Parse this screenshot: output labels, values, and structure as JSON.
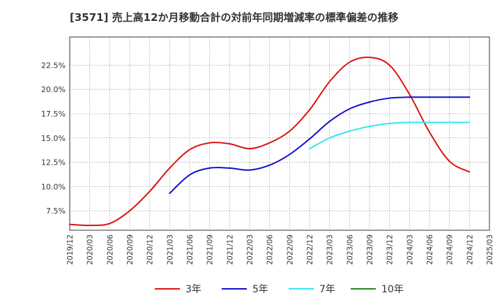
{
  "chart_data": {
    "type": "line",
    "title": "[3571]  売上高12か月移動合計の対前年同期増減率の標準偏差の推移",
    "xlabel": "",
    "ylabel": "",
    "x_ticks": [
      "2019/12",
      "2020/03",
      "2020/06",
      "2020/09",
      "2020/12",
      "2021/03",
      "2021/06",
      "2021/09",
      "2021/12",
      "2022/03",
      "2022/06",
      "2022/09",
      "2022/12",
      "2023/03",
      "2023/06",
      "2023/09",
      "2023/12",
      "2024/03",
      "2024/06",
      "2024/09",
      "2024/12",
      "2025/03"
    ],
    "y_ticks": [
      "7.5%",
      "10.0%",
      "12.5%",
      "15.0%",
      "17.5%",
      "20.0%",
      "22.5%"
    ],
    "ylim": [
      5.5,
      25.4
    ],
    "grid": true,
    "legend_position": "bottom",
    "colors": {
      "3y": "#dd1111",
      "5y": "#1111cc",
      "7y": "#33e6f0",
      "10y": "#228822"
    },
    "series": [
      {
        "name": "3年",
        "color": "#dd1111",
        "x": [
          "2019/12",
          "2020/03",
          "2020/06",
          "2020/09",
          "2020/12",
          "2021/03",
          "2021/06",
          "2021/09",
          "2021/12",
          "2022/03",
          "2022/06",
          "2022/09",
          "2022/12",
          "2023/03",
          "2023/06",
          "2023/09",
          "2023/12",
          "2024/03",
          "2024/06",
          "2024/09",
          "2024/12"
        ],
        "values": [
          6.1,
          6.0,
          6.2,
          7.5,
          9.5,
          11.9,
          13.8,
          14.5,
          14.4,
          13.9,
          14.5,
          15.7,
          17.9,
          20.8,
          22.8,
          23.3,
          22.5,
          19.5,
          15.6,
          12.6,
          11.5
        ]
      },
      {
        "name": "5年",
        "color": "#1111cc",
        "x": [
          "2021/03",
          "2021/06",
          "2021/09",
          "2021/12",
          "2022/03",
          "2022/06",
          "2022/09",
          "2022/12",
          "2023/03",
          "2023/06",
          "2023/09",
          "2023/12",
          "2024/03",
          "2024/06",
          "2024/09",
          "2024/12"
        ],
        "values": [
          9.3,
          11.2,
          11.9,
          11.9,
          11.7,
          12.2,
          13.3,
          14.9,
          16.7,
          18.0,
          18.7,
          19.1,
          19.2,
          19.2,
          19.2,
          19.2
        ]
      },
      {
        "name": "7年",
        "color": "#33e6f0",
        "x": [
          "2022/12",
          "2023/03",
          "2023/06",
          "2023/09",
          "2023/12",
          "2024/03",
          "2024/06",
          "2024/09",
          "2024/12"
        ],
        "values": [
          13.9,
          15.0,
          15.7,
          16.2,
          16.5,
          16.6,
          16.6,
          16.6,
          16.6
        ]
      },
      {
        "name": "10年",
        "color": "#228822",
        "x": [],
        "values": []
      }
    ]
  }
}
